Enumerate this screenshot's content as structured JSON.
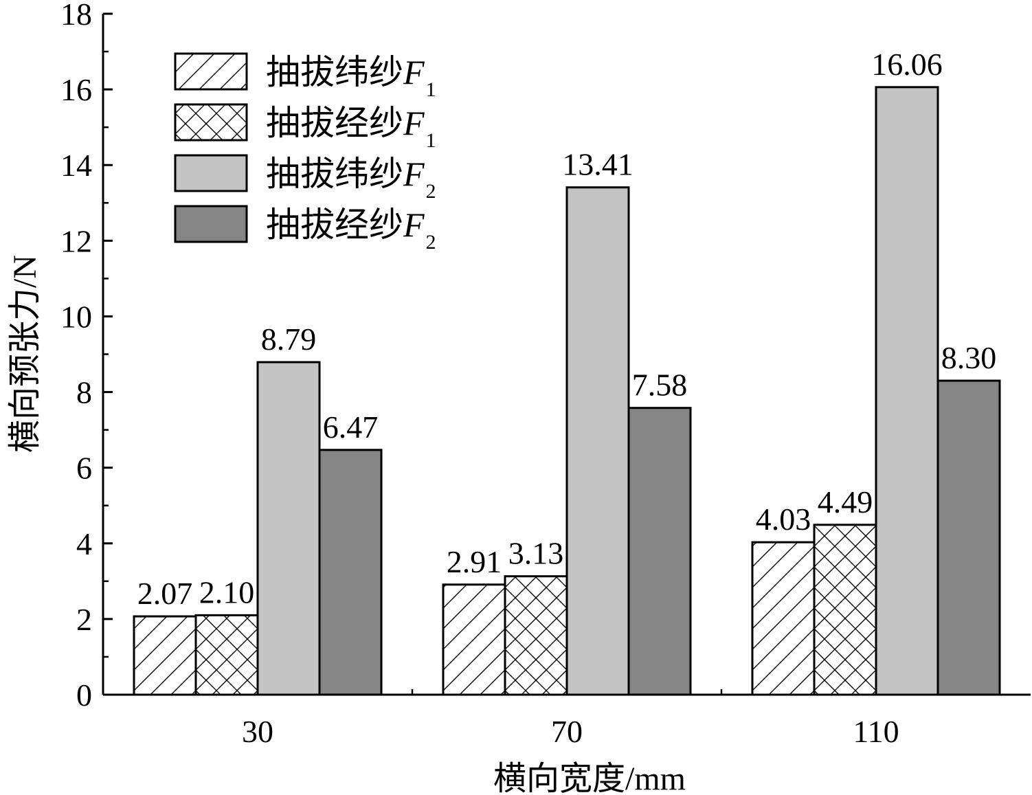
{
  "chart_data": {
    "type": "bar",
    "xlabel": "横向宽度/mm",
    "ylabel": "横向预张力/N",
    "categories": [
      "30",
      "70",
      "110"
    ],
    "ylim": [
      0,
      18
    ],
    "yticks": [
      "0",
      "2",
      "4",
      "6",
      "8",
      "10",
      "12",
      "14",
      "16",
      "18"
    ],
    "legend_position": "top-left",
    "series": [
      {
        "name": "抽拔纬纱F1",
        "legend_text": "抽拔纬纱",
        "legend_symbol": "F",
        "legend_subscript": "1",
        "fill": "diagonal-hatch",
        "color": "#ffffff",
        "values": [
          2.07,
          2.91,
          4.03
        ],
        "labels": [
          "2.07",
          "2.91",
          "4.03"
        ]
      },
      {
        "name": "抽拔经纱F1",
        "legend_text": "抽拔经纱",
        "legend_symbol": "F",
        "legend_subscript": "1",
        "fill": "cross-hatch",
        "color": "#ffffff",
        "values": [
          2.1,
          3.13,
          4.49
        ],
        "labels": [
          "2.10",
          "3.13",
          "4.49"
        ]
      },
      {
        "name": "抽拔纬纱F2",
        "legend_text": "抽拔纬纱",
        "legend_symbol": "F",
        "legend_subscript": "2",
        "fill": "solid",
        "color": "#c4c4c4",
        "values": [
          8.79,
          13.41,
          16.06
        ],
        "labels": [
          "8.79",
          "13.41",
          "16.06"
        ]
      },
      {
        "name": "抽拔经纱F2",
        "legend_text": "抽拔经纱",
        "legend_symbol": "F",
        "legend_subscript": "2",
        "fill": "solid",
        "color": "#858585",
        "values": [
          6.47,
          7.58,
          8.3
        ],
        "labels": [
          "6.47",
          "7.58",
          "8.30"
        ]
      }
    ]
  }
}
